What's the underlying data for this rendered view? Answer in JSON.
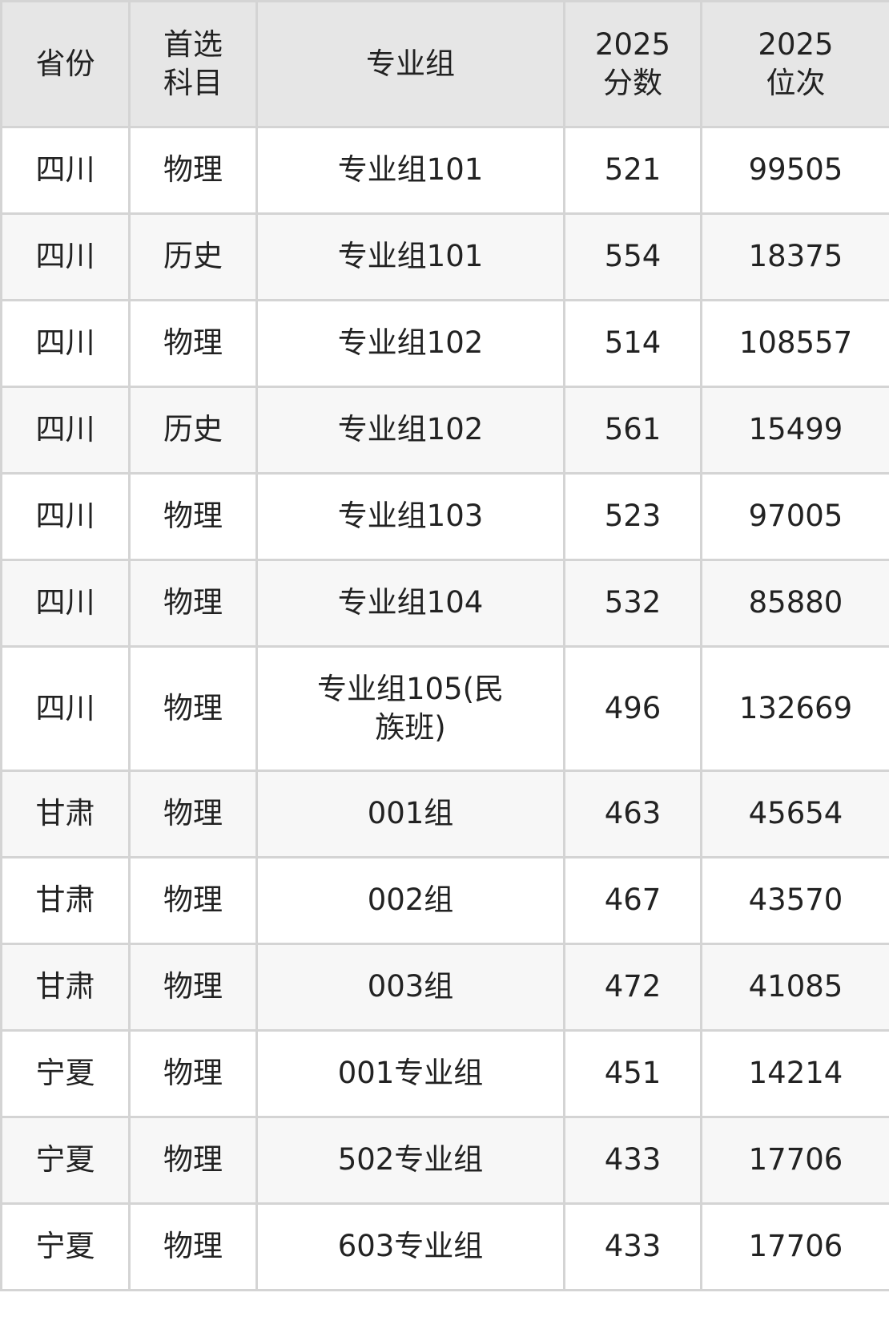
{
  "headers": [
    "省份",
    "首选科目",
    "专业组",
    "2025分数",
    "2025位次"
  ],
  "header_lines": [
    [
      "省份"
    ],
    [
      "首选",
      "科目"
    ],
    [
      "专业组"
    ],
    [
      "2025",
      "分数"
    ],
    [
      "2025",
      "位次"
    ]
  ],
  "rows": [
    [
      "四川",
      "物理",
      "专业组101",
      "521",
      "99505"
    ],
    [
      "四川",
      "历史",
      "专业组101",
      "554",
      "18375"
    ],
    [
      "四川",
      "物理",
      "专业组102",
      "514",
      "108557"
    ],
    [
      "四川",
      "历史",
      "专业组102",
      "561",
      "15499"
    ],
    [
      "四川",
      "物理",
      "专业组103",
      "523",
      "97005"
    ],
    [
      "四川",
      "物理",
      "专业组104",
      "532",
      "85880"
    ],
    [
      "四川",
      "物理",
      "专业组105(民族班)",
      "496",
      "132669"
    ],
    [
      "甘肃",
      "物理",
      "001组",
      "463",
      "45654"
    ],
    [
      "甘肃",
      "物理",
      "002组",
      "467",
      "43570"
    ],
    [
      "甘肃",
      "物理",
      "003组",
      "472",
      "41085"
    ],
    [
      "宁夏",
      "物理",
      "001专业组",
      "451",
      "14214"
    ],
    [
      "宁夏",
      "物理",
      "502专业组",
      "433",
      "17706"
    ],
    [
      "宁夏",
      "物理",
      "603专业组",
      "433",
      "17706"
    ]
  ]
}
